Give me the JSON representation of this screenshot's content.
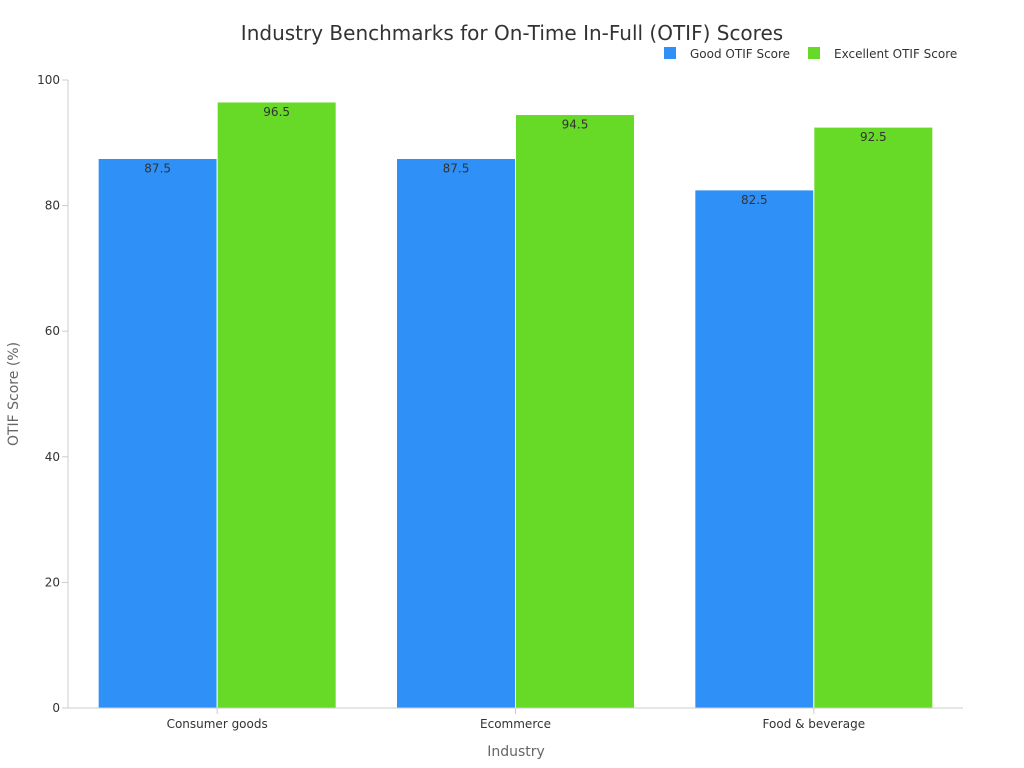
{
  "chart_data": {
    "type": "bar",
    "title": "Industry Benchmarks for On-Time In-Full (OTIF) Scores",
    "xlabel": "Industry",
    "ylabel": "OTIF Score (%)",
    "categories": [
      "Consumer goods",
      "Ecommerce",
      "Food & beverage"
    ],
    "series": [
      {
        "name": "Good OTIF Score",
        "color": "#2f91f7",
        "values": [
          87.5,
          87.5,
          82.5
        ]
      },
      {
        "name": "Excellent OTIF Score",
        "color": "#66da26",
        "values": [
          96.5,
          94.5,
          92.5
        ]
      }
    ],
    "ylim": [
      0,
      100
    ],
    "yticks": [
      0,
      20,
      40,
      60,
      80,
      100
    ],
    "grid": false,
    "legend_position": "top-right"
  }
}
